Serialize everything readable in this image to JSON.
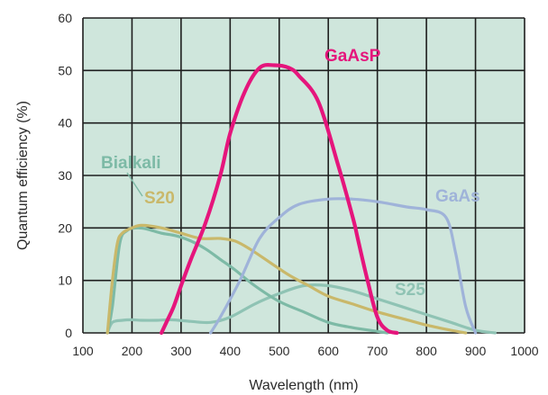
{
  "chart_data": {
    "type": "line",
    "xlabel": "Wavelength (nm)",
    "ylabel": "Quantum efficiency (%)",
    "xlim": [
      100,
      1000
    ],
    "ylim": [
      0,
      60
    ],
    "xticks": [
      100,
      200,
      300,
      400,
      500,
      600,
      700,
      800,
      900,
      1000
    ],
    "yticks": [
      0,
      10,
      20,
      30,
      40,
      50,
      60
    ],
    "xtick_labels": [
      "100",
      "200",
      "300",
      "400",
      "500",
      "600",
      "700",
      "800",
      "900",
      "1000"
    ],
    "ytick_labels": [
      "0",
      "10",
      "20",
      "30",
      "40",
      "50",
      "60"
    ],
    "grid": true,
    "background_color": "#cfe6dc",
    "series": [
      {
        "name": "Bialkali",
        "color": "#7dbaa6",
        "x": [
          150,
          160,
          175,
          190,
          210,
          230,
          260,
          290,
          320,
          350,
          380,
          410,
          450,
          500,
          550,
          600,
          650,
          700,
          720
        ],
        "y": [
          0,
          5,
          17,
          19.5,
          20,
          19.8,
          19,
          18.5,
          17.5,
          16,
          14,
          12,
          9,
          6,
          4,
          2,
          1,
          0.3,
          0
        ]
      },
      {
        "name": "S20",
        "color": "#c9b86a",
        "x": [
          150,
          160,
          170,
          180,
          200,
          220,
          260,
          300,
          340,
          380,
          410,
          440,
          480,
          520,
          560,
          600,
          650,
          700,
          760,
          800,
          850,
          880
        ],
        "y": [
          0,
          10,
          17,
          19,
          20,
          20.5,
          20,
          19,
          18,
          18,
          17.5,
          16,
          13.5,
          11,
          9,
          7,
          5.5,
          4,
          2.5,
          1.5,
          0.5,
          0
        ]
      },
      {
        "name": "S25",
        "color": "#8fc3b4",
        "x": [
          150,
          160,
          180,
          200,
          220,
          250,
          280,
          320,
          360,
          400,
          450,
          500,
          550,
          600,
          650,
          700,
          750,
          800,
          850,
          900,
          940
        ],
        "y": [
          0,
          2,
          2.4,
          2.5,
          2.4,
          2.4,
          2.5,
          2.2,
          2,
          3,
          5.5,
          7.5,
          9,
          9,
          8,
          6.5,
          5,
          3.5,
          2,
          0.5,
          0
        ]
      },
      {
        "name": "GaAs",
        "color": "#9fb3d9",
        "x": [
          360,
          380,
          420,
          460,
          500,
          540,
          600,
          650,
          700,
          760,
          800,
          840,
          860,
          880,
          900
        ],
        "y": [
          0,
          3,
          10,
          18,
          22,
          24.5,
          25.5,
          25.5,
          25,
          24,
          23.5,
          22,
          15,
          5,
          0
        ]
      },
      {
        "name": "GaAsP",
        "color": "#e5157c",
        "x": [
          260,
          270,
          285,
          300,
          320,
          350,
          380,
          400,
          430,
          460,
          490,
          520,
          540,
          580,
          620,
          650,
          660,
          680,
          700,
          720,
          740
        ],
        "y": [
          0,
          2,
          5,
          9,
          14,
          21,
          30,
          38,
          46,
          50.5,
          51,
          50.5,
          49,
          44,
          32,
          22,
          18,
          10,
          3,
          0.5,
          0
        ]
      }
    ]
  },
  "labels": {
    "gaasp": "GaAsP",
    "bialkali": "Bialkali",
    "s20": "S20",
    "gaas": "GaAs",
    "s25": "S25"
  }
}
